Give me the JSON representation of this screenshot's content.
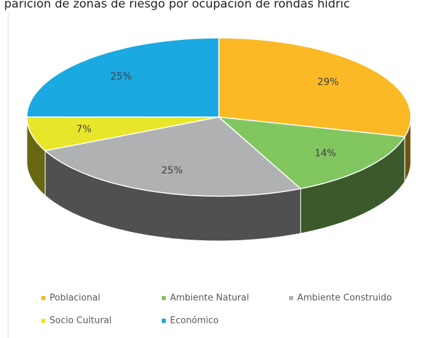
{
  "chart_data": {
    "type": "pie3d",
    "title": "parición de zonas de riesgo por ocupación de rondas hídric",
    "categories": [
      "Poblacional",
      "Ambiente Natural",
      "Ambiente Construido",
      "Socio Cultural",
      "Económico"
    ],
    "values": [
      29,
      14,
      25,
      7,
      25
    ],
    "value_labels": [
      "29%",
      "14%",
      "25%",
      "7%",
      "25%"
    ],
    "colors": [
      "#fbb925",
      "#82c660",
      "#b0b1b3",
      "#e8e62a",
      "#1aa9e0"
    ],
    "legend": "bottom"
  }
}
